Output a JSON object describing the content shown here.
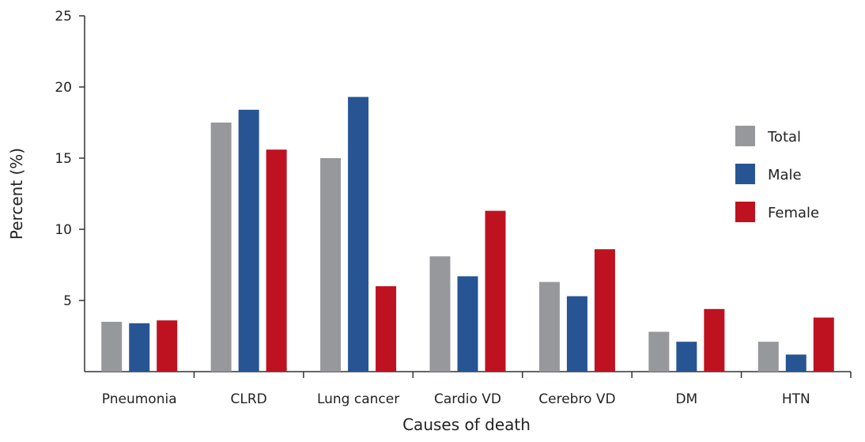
{
  "chart_data": {
    "type": "bar",
    "title": "",
    "xlabel": "Causes of death",
    "ylabel": "Percent (%)",
    "ylim": [
      0,
      25
    ],
    "yticks": [
      5,
      10,
      15,
      20,
      25
    ],
    "categories": [
      "Pneumonia",
      "CLRD",
      "Lung cancer",
      "Cardio VD",
      "Cerebro VD",
      "DM",
      "HTN"
    ],
    "series": [
      {
        "name": "Total",
        "color": "#97989c",
        "values": [
          3.5,
          17.5,
          15.0,
          8.1,
          6.3,
          2.8,
          2.1
        ]
      },
      {
        "name": "Male",
        "color": "#275594",
        "values": [
          3.4,
          18.4,
          19.3,
          6.7,
          5.3,
          2.1,
          1.2
        ]
      },
      {
        "name": "Female",
        "color": "#be1220",
        "values": [
          3.6,
          15.6,
          6.0,
          11.3,
          8.6,
          4.4,
          3.8
        ]
      }
    ],
    "legend_position": "right",
    "grid": false
  }
}
